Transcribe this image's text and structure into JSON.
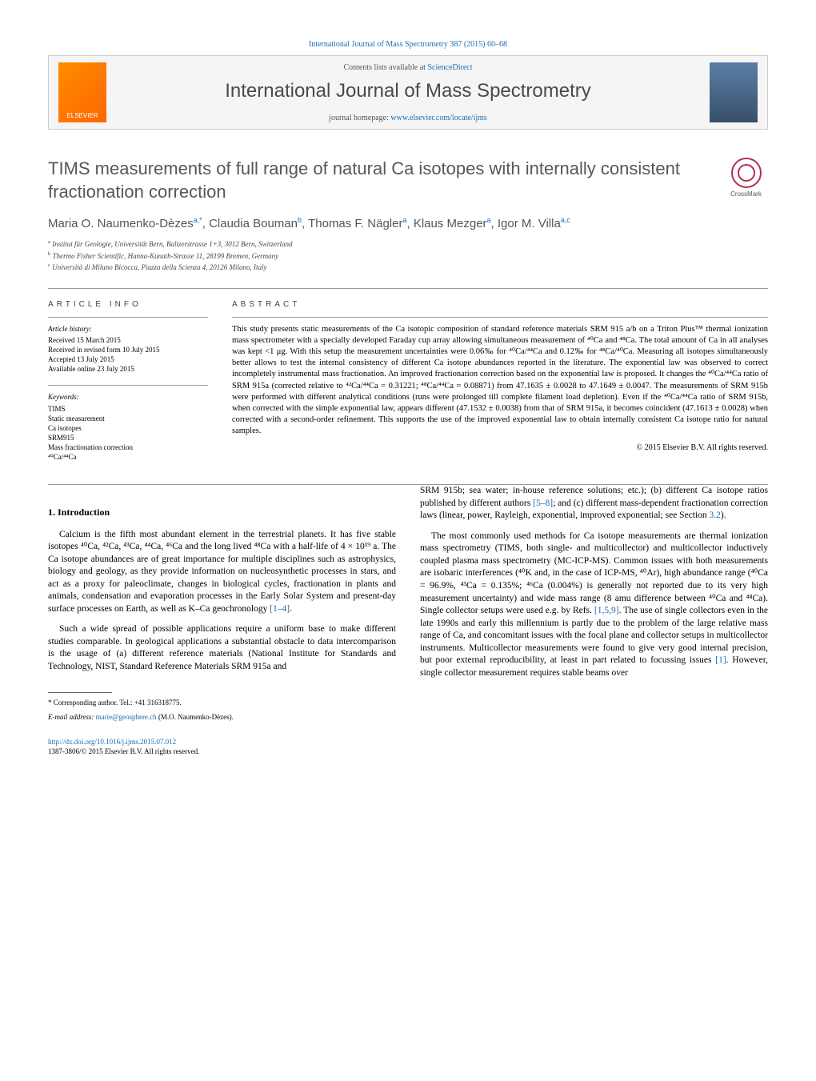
{
  "header": {
    "citation": "International Journal of Mass Spectrometry 387 (2015) 60–68",
    "contents_prefix": "Contents lists available at ",
    "contents_link": "ScienceDirect",
    "journal_title": "International Journal of Mass Spectrometry",
    "homepage_prefix": "journal homepage: ",
    "homepage_link": "www.elsevier.com/locate/ijms",
    "publisher_logo": "ELSEVIER",
    "crossmark_label": "CrossMark"
  },
  "article": {
    "title": "TIMS measurements of full range of natural Ca isotopes with internally consistent fractionation correction",
    "authors_html": "Maria O. Naumenko-Dèzes<sup>a,*</sup>, Claudia Bouman<sup>b</sup>, Thomas F. Nägler<sup>a</sup>, Klaus Mezger<sup>a</sup>, Igor M. Villa<sup>a,c</sup>",
    "affiliations": {
      "a": "Institut für Geologie, Universität Bern, Baltzerstrasse 1+3, 3012 Bern, Switzerland",
      "b": "Thermo Fisher Scientific, Hanna-Kunath-Strasse 11, 28199 Bremen, Germany",
      "c": "Università di Milano Bicocca, Piazza della Scienza 4, 20126 Milano, Italy"
    }
  },
  "info": {
    "heading_info": "article info",
    "history_label": "Article history:",
    "history": [
      "Received 15 March 2015",
      "Received in revised form 10 July 2015",
      "Accepted 13 July 2015",
      "Available online 23 July 2015"
    ],
    "keywords_label": "Keywords:",
    "keywords": [
      "TIMS",
      "Static measurement",
      "Ca isotopes",
      "SRM915",
      "Mass fractionation correction",
      "⁴⁰Ca/⁴⁴Ca"
    ]
  },
  "abstract": {
    "heading": "abstract",
    "text": "This study presents static measurements of the Ca isotopic composition of standard reference materials SRM 915 a/b on a Triton Plus™ thermal ionization mass spectrometer with a specially developed Faraday cup array allowing simultaneous measurement of ⁴⁰Ca and ⁴⁸Ca. The total amount of Ca in all analyses was kept <1 μg. With this setup the measurement uncertainties were 0.06‰ for ⁴⁰Ca/⁴⁴Ca and 0.12‰ for ⁴⁸Ca/⁴⁰Ca. Measuring all isotopes simultaneously better allows to test the internal consistency of different Ca isotope abundances reported in the literature. The exponential law was observed to correct incompletely instrumental mass fractionation. An improved fractionation correction based on the exponential law is proposed. It changes the ⁴⁰Ca/⁴⁴Ca ratio of SRM 915a (corrected relative to ⁴²Ca/⁴⁴Ca = 0.31221; ⁴⁸Ca/⁴⁴Ca = 0.08871) from 47.1635 ± 0.0028 to 47.1649 ± 0.0047. The measurements of SRM 915b were performed with different analytical conditions (runs were prolonged till complete filament load depletion). Even if the ⁴⁰Ca/⁴⁴Ca ratio of SRM 915b, when corrected with the simple exponential law, appears different (47.1532 ± 0.0038) from that of SRM 915a, it becomes coincident (47.1613 ± 0.0028) when corrected with a second-order refinement. This supports the use of the improved exponential law to obtain internally consistent Ca isotope ratio for natural samples.",
    "copyright": "© 2015 Elsevier B.V. All rights reserved."
  },
  "body": {
    "section_heading": "1. Introduction",
    "col1": {
      "p1": "Calcium is the fifth most abundant element in the terrestrial planets. It has five stable isotopes ⁴⁰Ca, ⁴²Ca, ⁴³Ca, ⁴⁴Ca, ⁴⁶Ca and the long lived ⁴⁸Ca with a half-life of 4 × 10¹⁹ a. The Ca isotope abundances are of great importance for multiple disciplines such as astrophysics, biology and geology, as they provide information on nucleosynthetic processes in stars, and act as a proxy for paleoclimate, changes in biological cycles, fractionation in plants and animals, condensation and evaporation processes in the Early Solar System and present-day surface processes on Earth, as well as K–Ca geochronology ",
      "p1_ref": "[1–4]",
      "p1_end": ".",
      "p2": "Such a wide spread of possible applications require a uniform base to make different studies comparable. In geological applications a substantial obstacle to data intercomparison is the usage of (a) different reference materials (National Institute for Standards and Technology, NIST, Standard Reference Materials SRM 915a and"
    },
    "col2": {
      "p1_start": "SRM 915b; sea water; in-house reference solutions; etc.); (b) different Ca isotope ratios published by different authors ",
      "p1_ref": "[5–8]",
      "p1_mid": "; and (c) different mass-dependent fractionation correction laws (linear, power, Rayleigh, exponential, improved exponential; see Section ",
      "p1_ref2": "3.2",
      "p1_end": ").",
      "p2_start": "The most commonly used methods for Ca isotope measurements are thermal ionization mass spectrometry (TIMS, both single- and multicollector) and multicollector inductively coupled plasma mass spectrometry (MC-ICP-MS). Common issues with both measurements are isobaric interferences (⁴⁰K and, in the case of ICP-MS, ⁴⁰Ar), high abundance range (⁴⁰Ca = 96.9%, ⁴³Ca = 0.135%; ⁴⁶Ca (0.004%) is generally not reported due to its very high measurement uncertainty) and wide mass range (8 amu difference between ⁴⁰Ca and ⁴⁸Ca). Single collector setups were used e.g. by Refs. ",
      "p2_ref": "[1,5,9]",
      "p2_mid": ". The use of single collectors even in the late 1990s and early this millennium is partly due to the problem of the large relative mass range of Ca, and concomitant issues with the focal plane and collector setups in multicollector instruments. Multicollector measurements were found to give very good internal precision, but poor external reproducibility, at least in part related to focussing issues ",
      "p2_ref2": "[1]",
      "p2_end": ". However, single collector measurement requires stable beams over"
    }
  },
  "footnote": {
    "corr_label": "* Corresponding author. Tel.: +41 316318775.",
    "email_label": "E-mail address: ",
    "email": "marie@geosphere.ch",
    "email_suffix": " (M.O. Naumenko-Dèzes)."
  },
  "doi": {
    "link": "http://dx.doi.org/10.1016/j.ijms.2015.07.012",
    "issn": "1387-3806/© 2015 Elsevier B.V. All rights reserved."
  },
  "colors": {
    "link_color": "#1a6bb3",
    "text_gray": "#575757",
    "border_gray": "#ccc"
  }
}
